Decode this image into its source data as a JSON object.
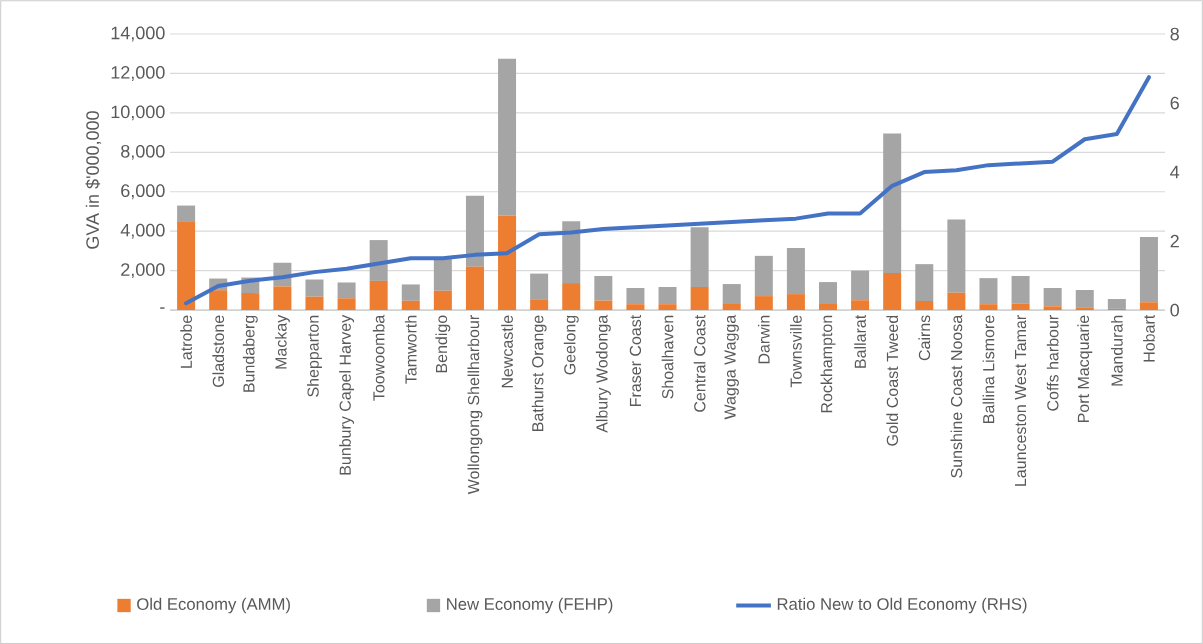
{
  "chart_data": {
    "type": "bar",
    "stacked": true,
    "categories": [
      "Latrobe",
      "Gladstone",
      "Bundaberg",
      "Mackay",
      "Shepparton",
      "Bunbury Capel Harvey",
      "Toowoomba",
      "Tamworth",
      "Bendigo",
      "Wollongong Shellharbour",
      "Newcastle",
      "Bathurst Orange",
      "Geelong",
      "Albury Wodonga",
      "Fraser Coast",
      "Shoalhaven",
      "Central Coast",
      "Wagga Wagga",
      "Darwin",
      "Townsville",
      "Rockhampton",
      "Ballarat",
      "Gold Coast Tweed",
      "Cairns",
      "Sunshine Coast Noosa",
      "Ballina Lismore",
      "Launceston West Tamar",
      "Coffs harbour",
      "Port Macquarie",
      "Mandurah",
      "Hobart"
    ],
    "series": [
      {
        "name": "Old Economy (AMM)",
        "color": "#ed7d31",
        "values": [
          4500,
          1000,
          860,
          1200,
          680,
          600,
          1480,
          470,
          980,
          2200,
          4800,
          550,
          1370,
          480,
          300,
          300,
          1170,
          350,
          710,
          810,
          350,
          500,
          1880,
          460,
          880,
          300,
          330,
          200,
          150,
          60,
          400
        ]
      },
      {
        "name": "New Economy (FEHP)",
        "color": "#a5a5a5",
        "values": [
          800,
          600,
          790,
          1200,
          870,
          800,
          2070,
          830,
          1620,
          3600,
          7950,
          1300,
          3130,
          1250,
          820,
          870,
          3030,
          970,
          2040,
          2340,
          1070,
          1500,
          7070,
          1870,
          3720,
          1320,
          1400,
          920,
          870,
          500,
          3300
        ]
      },
      {
        "name": "Ratio New to Old Economy (RHS)",
        "type": "line",
        "axis": "y2",
        "color": "#4472c4",
        "line_style": "solid",
        "values": [
          0.2,
          0.7,
          0.85,
          0.95,
          1.1,
          1.2,
          1.35,
          1.5,
          1.5,
          1.6,
          1.65,
          2.2,
          2.25,
          2.35,
          2.4,
          2.45,
          2.5,
          2.55,
          2.6,
          2.65,
          2.8,
          2.8,
          3.6,
          4.0,
          4.05,
          4.2,
          4.25,
          4.3,
          4.95,
          5.1,
          6.75
        ]
      }
    ],
    "ylabel": "GVA in $'000,000",
    "ylim": [
      0,
      14000
    ],
    "yticks": [
      {
        "value": 0,
        "label": "-"
      },
      {
        "value": 2000,
        "label": "2,000"
      },
      {
        "value": 4000,
        "label": "4,000"
      },
      {
        "value": 6000,
        "label": "6,000"
      },
      {
        "value": 8000,
        "label": "8,000"
      },
      {
        "value": 10000,
        "label": "10,000"
      },
      {
        "value": 12000,
        "label": "12,000"
      },
      {
        "value": 14000,
        "label": "14,000"
      }
    ],
    "y2lim": [
      0,
      8
    ],
    "y2ticks": [
      0,
      2,
      4,
      6,
      8
    ],
    "grid": "y",
    "legend": "bottom"
  }
}
